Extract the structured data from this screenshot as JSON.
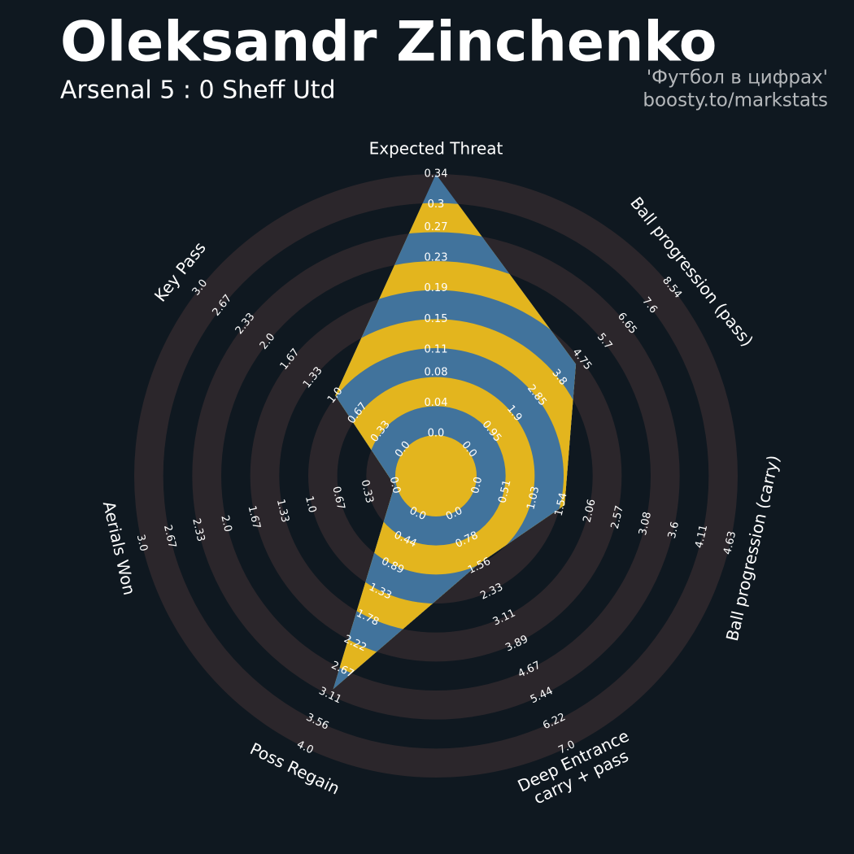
{
  "chart_data": {
    "type": "radar",
    "title": "Oleksandr Zinchenko",
    "subtitle": "Arsenal 5 : 0 Sheff Utd",
    "credits": [
      "'Футбол в цифрах'",
      "boosty.to/markstats"
    ],
    "params": [
      "Expected Threat",
      "Ball progression (pass)",
      "Ball progression (carry)",
      "Deep Entrance\ncarry + pass",
      "Poss Regain",
      "Aerials Won",
      "Key Pass"
    ],
    "ranges": [
      [
        0,
        0.34
      ],
      [
        0,
        8.54
      ],
      [
        0,
        4.63
      ],
      [
        0,
        7.0
      ],
      [
        0,
        4.0
      ],
      [
        0,
        3.0
      ],
      [
        0,
        3.0
      ]
    ],
    "ticks": [
      [
        {
          "value": 0,
          "label": "0.0"
        },
        0.04,
        0.08,
        0.11,
        0.15,
        0.19,
        0.23,
        0.27,
        0.3,
        0.34
      ],
      [
        {
          "value": 0,
          "label": "0.0"
        },
        0.95,
        1.9,
        2.85,
        3.8,
        4.75,
        5.7,
        6.65,
        7.6,
        8.54
      ],
      [
        {
          "value": 0,
          "label": "0.0"
        },
        0.51,
        1.03,
        1.54,
        2.06,
        2.57,
        3.08,
        3.6,
        4.11,
        4.63
      ],
      [
        {
          "value": 0,
          "label": "0.0"
        },
        0.78,
        1.56,
        2.33,
        3.11,
        3.89,
        4.67,
        5.44,
        6.22,
        {
          "value": 7,
          "label": "7.0"
        }
      ],
      [
        {
          "value": 0,
          "label": "0.0"
        },
        0.44,
        0.89,
        1.33,
        1.78,
        2.22,
        2.67,
        3.11,
        3.56,
        {
          "value": 4,
          "label": "4.0"
        }
      ],
      [
        {
          "value": 0,
          "label": "0.0"
        },
        0.33,
        0.67,
        {
          "value": 1,
          "label": "1.0"
        },
        1.33,
        1.67,
        {
          "value": 2,
          "label": "2.0"
        },
        2.33,
        2.67,
        {
          "value": 3,
          "label": "3.0"
        }
      ],
      [
        {
          "value": 0,
          "label": "0.0"
        },
        0.33,
        0.67,
        {
          "value": 1,
          "label": "1.0"
        },
        1.33,
        1.67,
        {
          "value": 2,
          "label": "2.0"
        },
        2.33,
        2.67,
        {
          "value": 3,
          "label": "3.0"
        }
      ]
    ],
    "values": [
      0.34,
      4.5,
      1.6,
      1.5,
      3.0,
      0,
      1.0
    ],
    "colors": {
      "background": "#0f1820",
      "rings": "#2b262b",
      "inside_a": "#41739c",
      "inside_b": "#e3b51e"
    }
  }
}
